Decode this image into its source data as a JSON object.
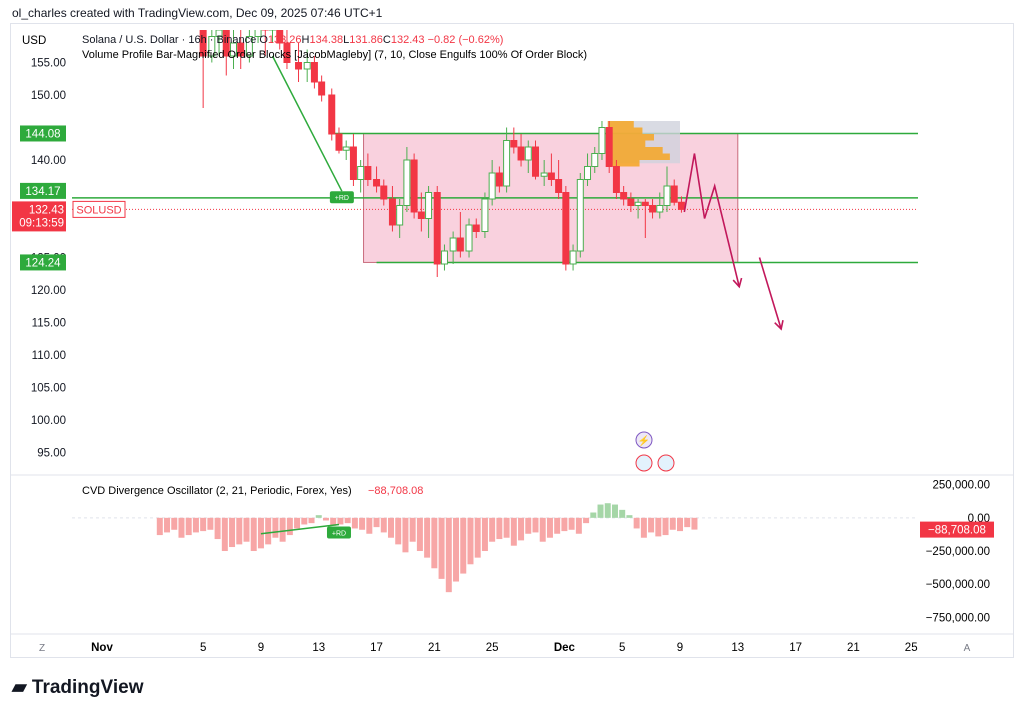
{
  "header": {
    "credit": "ol_charles created with TradingView.com, Dec 09, 2025 07:46 UTC+1"
  },
  "currency_label": "USD",
  "legend": {
    "symbol": "Solana / U.S. Dollar · 16h · Binance",
    "o_label": "O",
    "o_value": "133.26",
    "h_label": "H",
    "h_value": "134.38",
    "l_label": "L",
    "l_value": "131.86",
    "c_label": "C",
    "c_value": "132.43",
    "change": "−0.82 (−0.62%)",
    "indicator": "Volume Profile Bar-Magnified Order Blocks [JacobMagleby] (7, 10, Close Engulfs 100% Of Order Block)"
  },
  "oscillator_legend": {
    "name": "CVD Divergence Oscillator (2, 21, Periodic, Forex, Yes)",
    "value": "−88,708.08"
  },
  "badges": {
    "upper": "144.08",
    "mid": "134.17",
    "lower": "124.24",
    "price": "132.43",
    "countdown": "09:13:59",
    "symbol": "SOLUSD",
    "osc_value": "−88,708.08",
    "rd_label": "+RD"
  },
  "axis_buttons": {
    "left": "Z",
    "right": "A"
  },
  "brand": {
    "name": "TradingView"
  },
  "colors": {
    "up": "#4caf50",
    "down": "#f23645",
    "zone": "#f7c6d6",
    "level": "#2eaa3c",
    "arrow": "#c2185b",
    "hist_neg": "#f7a6a6",
    "hist_pos": "#a5d6a7"
  },
  "chart_data": [
    {
      "type": "candlestick",
      "title": "Solana / U.S. Dollar · 16h · Binance",
      "ylim": [
        92,
        160
      ],
      "y_ticks": [
        95,
        100,
        105,
        110,
        115,
        120,
        125,
        140,
        150,
        155
      ],
      "y_tick_labels": [
        "95.00",
        "100.00",
        "105.00",
        "110.00",
        "115.00",
        "120.00",
        "125.00",
        "140.00",
        "150.00",
        "155.00"
      ],
      "x_ticks": [
        {
          "day": -2,
          "label": "Nov"
        },
        {
          "day": 5,
          "label": "5"
        },
        {
          "day": 9,
          "label": "9"
        },
        {
          "day": 13,
          "label": "13"
        },
        {
          "day": 17,
          "label": "17"
        },
        {
          "day": 21,
          "label": "21"
        },
        {
          "day": 25,
          "label": "25"
        },
        {
          "day": 30,
          "label": "Dec"
        },
        {
          "day": 34,
          "label": "5"
        },
        {
          "day": 38,
          "label": "9"
        },
        {
          "day": 42,
          "label": "13"
        },
        {
          "day": 46,
          "label": "17"
        },
        {
          "day": 50,
          "label": "21"
        },
        {
          "day": 54,
          "label": "25"
        }
      ],
      "candles": [
        [
          5,
          160,
          163,
          148,
          156
        ],
        [
          5.6,
          156,
          161,
          155,
          159
        ],
        [
          6.1,
          159,
          164,
          156,
          160
        ],
        [
          6.6,
          160,
          161,
          153,
          156
        ],
        [
          7.1,
          156,
          162,
          154,
          158
        ],
        [
          7.6,
          158,
          160,
          154,
          156
        ],
        [
          8.2,
          156,
          162,
          155,
          159
        ],
        [
          8.8,
          159,
          165,
          158,
          161
        ],
        [
          9.3,
          161,
          163,
          156,
          160
        ],
        [
          9.8,
          160,
          164,
          158,
          162
        ],
        [
          10.3,
          162,
          164,
          157,
          158
        ],
        [
          10.8,
          158,
          160,
          154,
          155
        ],
        [
          11.6,
          155,
          158,
          152,
          154
        ],
        [
          12.2,
          154,
          157,
          152,
          155
        ],
        [
          12.7,
          155,
          156,
          151,
          152
        ],
        [
          13.2,
          152,
          153,
          149,
          150
        ],
        [
          13.9,
          150,
          151,
          143,
          144
        ],
        [
          14.4,
          144,
          145,
          141,
          141.5
        ],
        [
          14.9,
          141.5,
          143,
          140,
          142
        ],
        [
          15.4,
          142,
          144,
          136,
          137
        ],
        [
          15.9,
          137,
          140,
          135,
          139
        ],
        [
          16.4,
          139,
          141,
          136,
          137
        ],
        [
          17,
          137,
          139,
          135,
          136
        ],
        [
          17.5,
          136,
          137,
          133,
          134
        ],
        [
          18.1,
          134,
          136,
          129,
          130
        ],
        [
          18.6,
          130,
          134,
          128,
          133
        ],
        [
          19.1,
          133,
          142,
          132,
          140
        ],
        [
          19.6,
          140,
          141,
          131,
          132
        ],
        [
          20.1,
          132,
          135,
          129,
          131
        ],
        [
          20.6,
          131,
          136,
          128,
          135
        ],
        [
          21.2,
          135,
          136,
          122,
          124
        ],
        [
          21.7,
          124,
          127,
          123,
          126
        ],
        [
          22.3,
          126,
          129,
          124,
          128
        ],
        [
          22.8,
          128,
          132,
          125,
          126
        ],
        [
          23.4,
          126,
          131,
          125,
          130
        ],
        [
          23.9,
          130,
          131,
          128,
          129
        ],
        [
          24.5,
          129,
          135,
          128,
          134
        ],
        [
          25,
          134,
          140,
          133,
          138
        ],
        [
          25.5,
          138,
          139,
          135,
          136
        ],
        [
          26,
          136,
          145,
          135,
          143
        ],
        [
          26.5,
          143,
          145,
          141,
          142
        ],
        [
          27,
          142,
          144,
          139,
          140
        ],
        [
          27.5,
          140,
          143,
          138,
          142
        ],
        [
          28,
          142,
          143,
          137,
          137.5
        ],
        [
          28.6,
          137.5,
          140,
          136,
          138
        ],
        [
          29.1,
          138,
          141,
          136,
          137
        ],
        [
          29.6,
          137,
          140,
          134,
          135
        ],
        [
          30.1,
          135,
          136,
          123,
          124
        ],
        [
          30.6,
          124,
          127,
          123,
          126
        ],
        [
          31.1,
          126,
          138,
          125,
          137
        ],
        [
          31.6,
          137,
          141,
          136,
          139
        ],
        [
          32.1,
          139,
          142,
          138,
          141
        ],
        [
          32.6,
          141,
          146,
          140,
          145
        ],
        [
          33.1,
          145,
          146,
          138,
          139
        ],
        [
          33.6,
          139,
          140,
          134,
          135
        ],
        [
          34.1,
          135,
          136,
          133,
          134
        ],
        [
          34.6,
          134,
          135,
          132,
          133
        ],
        [
          35.1,
          133,
          134,
          131,
          133.5
        ],
        [
          35.6,
          133.5,
          134,
          128,
          133
        ],
        [
          36.1,
          133,
          134,
          131,
          132
        ],
        [
          36.6,
          132,
          135,
          131,
          133
        ],
        [
          37.1,
          133,
          139,
          132,
          136
        ],
        [
          37.6,
          136,
          137,
          133,
          133.5
        ],
        [
          38.1,
          133.5,
          134.4,
          131.9,
          132.4
        ]
      ],
      "zone": {
        "x": [
          16.1,
          42
        ],
        "y": [
          124.24,
          144.08
        ]
      },
      "levels": [
        144.08,
        134.17,
        124.24
      ],
      "projection": [
        [
          38.3,
          132
        ],
        [
          39,
          141
        ],
        [
          39.7,
          131
        ],
        [
          40.4,
          136
        ],
        [
          42.1,
          120.5
        ]
      ],
      "projection2": [
        [
          43.5,
          125
        ],
        [
          45,
          114
        ]
      ],
      "divergence": [
        [
          9.8,
          156
        ],
        [
          14.6,
          135.2
        ]
      ]
    },
    {
      "type": "bar",
      "title": "CVD Divergence Oscillator (2, 21, Periodic, Forex, Yes)",
      "ylim": [
        -830000,
        300000
      ],
      "y_ticks": [
        250000,
        0,
        -250000,
        -500000,
        -750000
      ],
      "y_tick_labels": [
        "250,000.00",
        "0.00",
        "−250,000.00",
        "−500,000.00",
        "−750,000.00"
      ],
      "x_start": 2,
      "x_step": 0.5,
      "values": [
        -130000,
        -110000,
        -90000,
        -150000,
        -130000,
        -110000,
        -100000,
        -90000,
        -160000,
        -250000,
        -220000,
        -200000,
        -180000,
        -250000,
        -230000,
        -200000,
        -150000,
        -180000,
        -130000,
        -80000,
        -50000,
        -40000,
        20000,
        -20000,
        -60000,
        -50000,
        -40000,
        -80000,
        -90000,
        -120000,
        -70000,
        -110000,
        -150000,
        -200000,
        -260000,
        -180000,
        -250000,
        -300000,
        -380000,
        -460000,
        -560000,
        -480000,
        -420000,
        -350000,
        -300000,
        -250000,
        -180000,
        -160000,
        -150000,
        -210000,
        -170000,
        -120000,
        -110000,
        -180000,
        -150000,
        -120000,
        -100000,
        -90000,
        -120000,
        -40000,
        40000,
        100000,
        110000,
        100000,
        60000,
        20000,
        -80000,
        -150000,
        -110000,
        -140000,
        -130000,
        -90000,
        -100000,
        -70000,
        -88708
      ]
    }
  ]
}
